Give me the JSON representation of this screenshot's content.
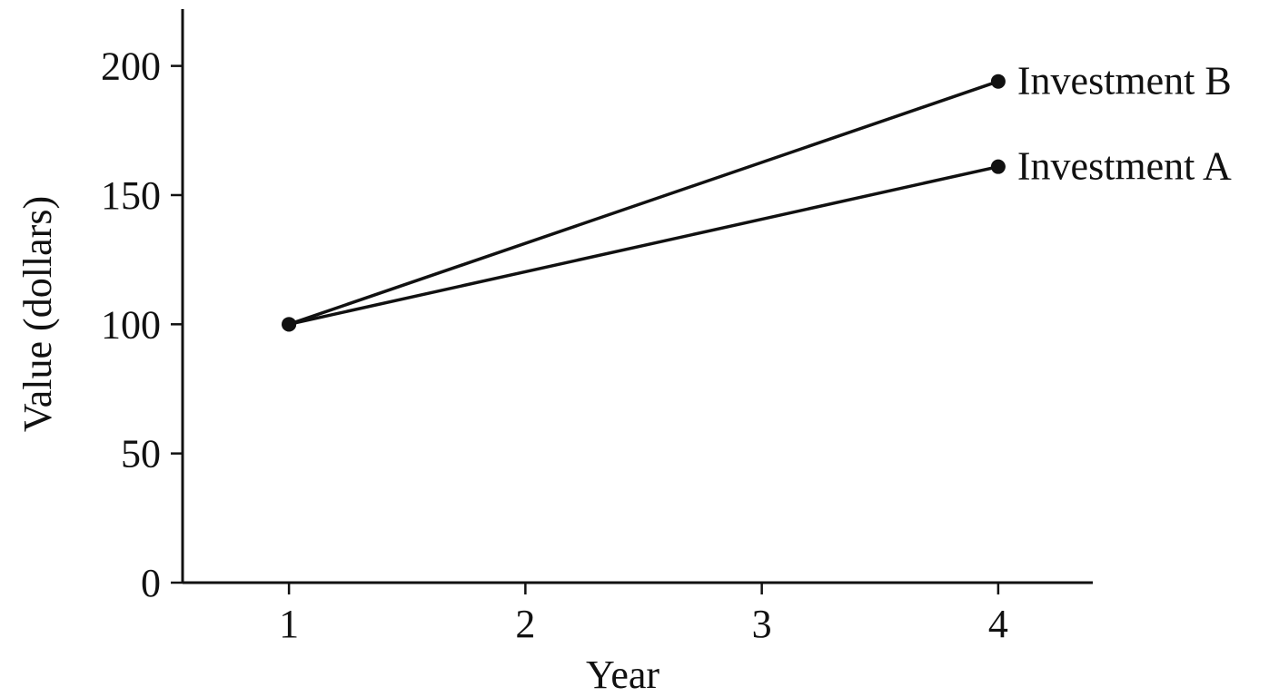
{
  "chart_data": {
    "type": "line",
    "xlabel": "Year",
    "ylabel": "Value (dollars)",
    "x_ticks": [
      1,
      2,
      3,
      4
    ],
    "y_ticks": [
      0,
      50,
      100,
      150,
      200
    ],
    "xlim": [
      0.55,
      4.4
    ],
    "ylim": [
      0,
      222
    ],
    "grid": false,
    "series": [
      {
        "name": "Investment A",
        "x": [
          1,
          4
        ],
        "y": [
          100,
          161
        ]
      },
      {
        "name": "Investment B",
        "x": [
          1,
          4
        ],
        "y": [
          100,
          194
        ]
      }
    ]
  }
}
